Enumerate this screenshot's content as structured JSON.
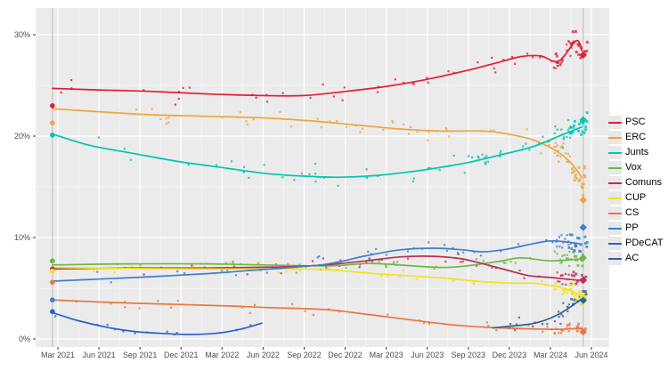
{
  "chart_data": {
    "type": "scatter",
    "title": "",
    "x_axis": {
      "unit": "month",
      "ticks": [
        {
          "m": 2,
          "label": "Mar 2021"
        },
        {
          "m": 5,
          "label": "Jun 2021"
        },
        {
          "m": 8,
          "label": "Sep 2021"
        },
        {
          "m": 11,
          "label": "Dec 2021"
        },
        {
          "m": 14,
          "label": "Mar 2022"
        },
        {
          "m": 17,
          "label": "Jun 2022"
        },
        {
          "m": 20,
          "label": "Sep 2022"
        },
        {
          "m": 23,
          "label": "Dec 2022"
        },
        {
          "m": 26,
          "label": "Mar 2023"
        },
        {
          "m": 29,
          "label": "Jun 2023"
        },
        {
          "m": 32,
          "label": "Sep 2023"
        },
        {
          "m": 35,
          "label": "Dec 2023"
        },
        {
          "m": 38,
          "label": "Mar 2024"
        },
        {
          "m": 41,
          "label": "Jun 2024"
        }
      ]
    },
    "y_axis": {
      "unit": "%",
      "ticks": [
        {
          "v": 0,
          "label": "0%"
        },
        {
          "v": 10,
          "label": "10%"
        },
        {
          "v": 20,
          "label": "20%"
        },
        {
          "v": 30,
          "label": "30%"
        }
      ],
      "minor": [
        5,
        15,
        25
      ],
      "range": [
        0,
        32.6
      ]
    },
    "grid": {
      "panel_bg": "#ebebeb",
      "major": "#ffffff",
      "minor": "#f7f7f7"
    },
    "elections": [
      {
        "name": "election-2021",
        "m": 1.6,
        "line_color": "#c4c4c4"
      },
      {
        "name": "election-2024",
        "m": 40.4,
        "line_color": "#c4c4c4"
      }
    ],
    "legend_position": "right",
    "series": [
      {
        "name": "PSC",
        "color": "#e11e35",
        "trend": [
          [
            1.6,
            24.7
          ],
          [
            5,
            24.55
          ],
          [
            9,
            24.4
          ],
          [
            13,
            24.15
          ],
          [
            17,
            24.0
          ],
          [
            20,
            24.0
          ],
          [
            23,
            24.4
          ],
          [
            26,
            24.9
          ],
          [
            29,
            25.6
          ],
          [
            32,
            26.5
          ],
          [
            34,
            27.2
          ],
          [
            35.9,
            27.85
          ],
          [
            37.3,
            27.9
          ],
          [
            38.6,
            27.4
          ],
          [
            39.9,
            29.4
          ],
          [
            40.3,
            28.4
          ]
        ],
        "result_2021": 23.0,
        "result_2024": 28.0,
        "scatter": {
          "n": 80,
          "sigma": 0.85,
          "m_start": 1.6,
          "m_end": 40.7,
          "seed": 11
        }
      },
      {
        "name": "ERC",
        "color": "#eda63e",
        "trend": [
          [
            1.6,
            22.7
          ],
          [
            5,
            22.4
          ],
          [
            9,
            22.1
          ],
          [
            13,
            21.95
          ],
          [
            17,
            21.8
          ],
          [
            20.5,
            21.5
          ],
          [
            23.8,
            21.1
          ],
          [
            27,
            20.7
          ],
          [
            30,
            20.5
          ],
          [
            33,
            20.5
          ],
          [
            34.5,
            20.3
          ],
          [
            36.8,
            19.6
          ],
          [
            38.6,
            18.4
          ],
          [
            39.6,
            17.2
          ],
          [
            40.3,
            15.9
          ]
        ],
        "result_2021": 21.3,
        "result_2024": 13.7,
        "scatter": {
          "n": 80,
          "sigma": 0.85,
          "m_start": 1.6,
          "m_end": 40.7,
          "seed": 22
        }
      },
      {
        "name": "Junts",
        "color": "#00c4b3",
        "trend": [
          [
            1.6,
            20.2
          ],
          [
            4.3,
            19.1
          ],
          [
            7.5,
            18.3
          ],
          [
            10.8,
            17.5
          ],
          [
            14,
            16.9
          ],
          [
            17.3,
            16.3
          ],
          [
            20,
            16.05
          ],
          [
            22.5,
            15.95
          ],
          [
            25.1,
            16.1
          ],
          [
            28.4,
            16.6
          ],
          [
            31.6,
            17.3
          ],
          [
            34.2,
            18.1
          ],
          [
            36.8,
            19.0
          ],
          [
            38.8,
            20.1
          ],
          [
            40.3,
            20.9
          ]
        ],
        "result_2021": 20.1,
        "result_2024": 21.6,
        "scatter": {
          "n": 85,
          "sigma": 0.85,
          "m_start": 1.6,
          "m_end": 40.7,
          "seed": 33
        }
      },
      {
        "name": "Vox",
        "color": "#6cb843",
        "trend": [
          [
            1.6,
            7.3
          ],
          [
            7,
            7.4
          ],
          [
            13,
            7.4
          ],
          [
            21.5,
            7.2
          ],
          [
            25,
            7.45
          ],
          [
            30.3,
            7.05
          ],
          [
            34,
            7.6
          ],
          [
            35.8,
            8.0
          ],
          [
            38,
            7.7
          ],
          [
            40.3,
            7.9
          ]
        ],
        "result_2021": 7.7,
        "result_2024": 8.0,
        "scatter": {
          "n": 60,
          "sigma": 0.5,
          "m_start": 1.6,
          "m_end": 40.7,
          "seed": 44
        }
      },
      {
        "name": "Comuns",
        "color": "#ba2f55",
        "trend": [
          [
            1.6,
            6.9
          ],
          [
            7,
            7.0
          ],
          [
            13,
            7.0
          ],
          [
            18,
            7.1
          ],
          [
            21.5,
            7.3
          ],
          [
            24.5,
            7.7
          ],
          [
            27.1,
            8.1
          ],
          [
            29.5,
            8.15
          ],
          [
            31.5,
            7.9
          ],
          [
            33.1,
            7.4
          ],
          [
            34.8,
            6.8
          ],
          [
            36.4,
            6.25
          ],
          [
            38.1,
            6.05
          ],
          [
            40.3,
            5.75
          ]
        ],
        "result_2021": 6.9,
        "result_2024": 5.8,
        "scatter": {
          "n": 60,
          "sigma": 0.5,
          "m_start": 1.6,
          "m_end": 40.7,
          "seed": 55
        }
      },
      {
        "name": "CUP",
        "color": "#f2e21d",
        "trend": [
          [
            1.6,
            7.05
          ],
          [
            7,
            6.95
          ],
          [
            13,
            6.9
          ],
          [
            18,
            6.9
          ],
          [
            21.5,
            6.85
          ],
          [
            25.1,
            6.45
          ],
          [
            28,
            6.2
          ],
          [
            30.3,
            6.0
          ],
          [
            33,
            5.65
          ],
          [
            35.5,
            5.5
          ],
          [
            36.8,
            5.5
          ],
          [
            38.3,
            5.2
          ],
          [
            39.4,
            4.8
          ],
          [
            40.3,
            4.2
          ]
        ],
        "result_2021": 6.7,
        "result_2024": 4.1,
        "scatter": {
          "n": 60,
          "sigma": 0.5,
          "m_start": 1.6,
          "m_end": 40.7,
          "seed": 66
        }
      },
      {
        "name": "CS",
        "color": "#e8763f",
        "trend": [
          [
            1.6,
            3.85
          ],
          [
            6,
            3.6
          ],
          [
            10.8,
            3.4
          ],
          [
            14.5,
            3.25
          ],
          [
            17.3,
            3.1
          ],
          [
            21.5,
            2.9
          ],
          [
            24.5,
            2.45
          ],
          [
            27.1,
            2.0
          ],
          [
            29.5,
            1.6
          ],
          [
            31.6,
            1.3
          ],
          [
            34.2,
            1.1
          ],
          [
            36.5,
            1.0
          ],
          [
            38.5,
            0.95
          ],
          [
            40.3,
            1.05
          ]
        ],
        "result_2021": 5.6,
        "result_2024": 0.7,
        "scatter": {
          "n": 50,
          "sigma": 0.45,
          "m_start": 1.6,
          "m_end": 40.7,
          "seed": 77
        }
      },
      {
        "name": "PP",
        "color": "#3f7fd0",
        "trend": [
          [
            1.6,
            5.7
          ],
          [
            5,
            5.9
          ],
          [
            9,
            6.15
          ],
          [
            13,
            6.45
          ],
          [
            17,
            6.85
          ],
          [
            21.5,
            7.35
          ],
          [
            24.5,
            8.2
          ],
          [
            27.1,
            8.8
          ],
          [
            29.5,
            8.95
          ],
          [
            31.5,
            8.8
          ],
          [
            33.1,
            8.6
          ],
          [
            34.8,
            8.85
          ],
          [
            36.4,
            9.3
          ],
          [
            37.8,
            9.65
          ],
          [
            39,
            9.6
          ],
          [
            40.3,
            9.35
          ]
        ],
        "result_2021": 3.85,
        "result_2024": 11.0,
        "scatter": {
          "n": 70,
          "sigma": 0.6,
          "m_start": 1.6,
          "m_end": 40.7,
          "seed": 88
        }
      },
      {
        "name": "PDeCAT",
        "color": "#2962c8",
        "trend": [
          [
            1.6,
            2.6
          ],
          [
            3.5,
            1.8
          ],
          [
            5.6,
            1.15
          ],
          [
            7.5,
            0.75
          ],
          [
            9.5,
            0.55
          ],
          [
            11.5,
            0.45
          ],
          [
            13.5,
            0.55
          ],
          [
            15.3,
            0.95
          ],
          [
            16.9,
            1.55
          ]
        ],
        "result_2021": 2.7,
        "result_2024": null,
        "scatter": {
          "n": 12,
          "sigma": 0.4,
          "m_start": 1.8,
          "m_end": 16.5,
          "seed": 99,
          "uniform": true
        }
      },
      {
        "name": "AC",
        "color": "#35618f",
        "trend": [
          [
            33.8,
            1.1
          ],
          [
            36.4,
            1.45
          ],
          [
            37.5,
            1.8
          ],
          [
            38.4,
            2.3
          ],
          [
            39.4,
            3.1
          ],
          [
            40.3,
            4.0
          ]
        ],
        "result_2021": null,
        "result_2024": 3.8,
        "scatter": {
          "n": 32,
          "sigma": 0.7,
          "m_start": 33.8,
          "m_end": 40.7,
          "seed": 110
        }
      }
    ]
  },
  "legend": {
    "items": [
      "PSC",
      "ERC",
      "Junts",
      "Vox",
      "Comuns",
      "CUP",
      "CS",
      "PP",
      "PDeCAT",
      "AC"
    ]
  },
  "axis_text_color": "#4d4d4d",
  "tick_color": "#333333"
}
